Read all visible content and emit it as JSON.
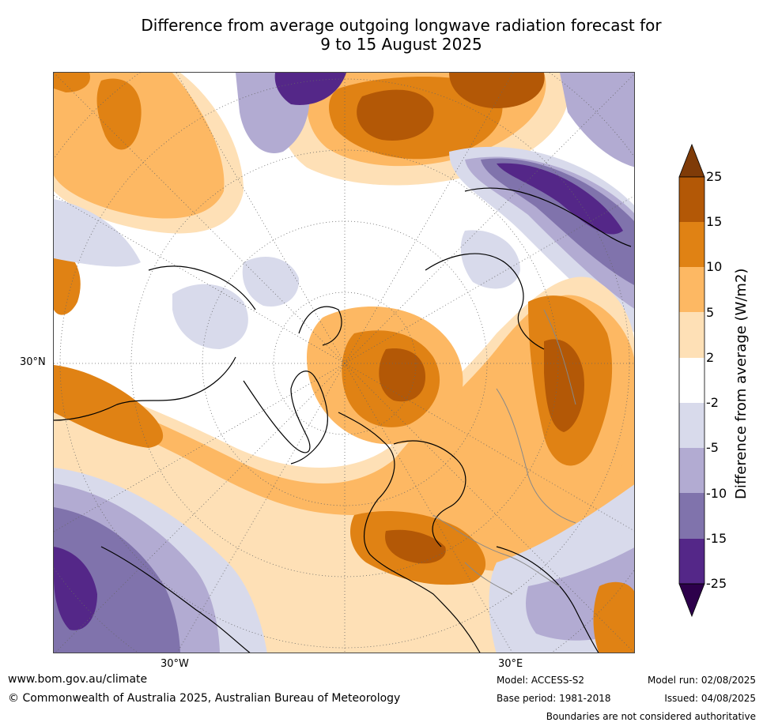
{
  "title_line1": "Difference from average outgoing longwave radiation forecast for",
  "title_line2": "9 to 15 August 2025",
  "map": {
    "lat_label": "30°N",
    "lon_label_west": "30°W",
    "lon_label_east": "30°E"
  },
  "colorbar": {
    "title": "Difference from average (W/m2)",
    "levels": [
      "25",
      "15",
      "10",
      "5",
      "2",
      "-2",
      "-5",
      "-10",
      "-15",
      "-25"
    ],
    "colors": {
      "gt25": "#7f3b08",
      "15_25": "#b35806",
      "10_15": "#e08214",
      "5_10": "#fdb863",
      "2_5": "#fee0b6",
      "neutral": "#ffffff",
      "m5_m2": "#d8daeb",
      "m10_m5": "#b2abd2",
      "m15_m10": "#8073ac",
      "m25_m15": "#542788",
      "lt_m25": "#2d004b"
    }
  },
  "footer": {
    "website": "www.bom.gov.au/climate",
    "copyright": "© Commonwealth of Australia 2025, Australian Bureau of Meteorology",
    "model": "Model: ACCESS-S2",
    "base_period": "Base period: 1981-2018",
    "model_run": "Model run: 02/08/2025",
    "issued": "Issued: 04/08/2025",
    "disclaimer": "Boundaries are not considered authoritative"
  }
}
